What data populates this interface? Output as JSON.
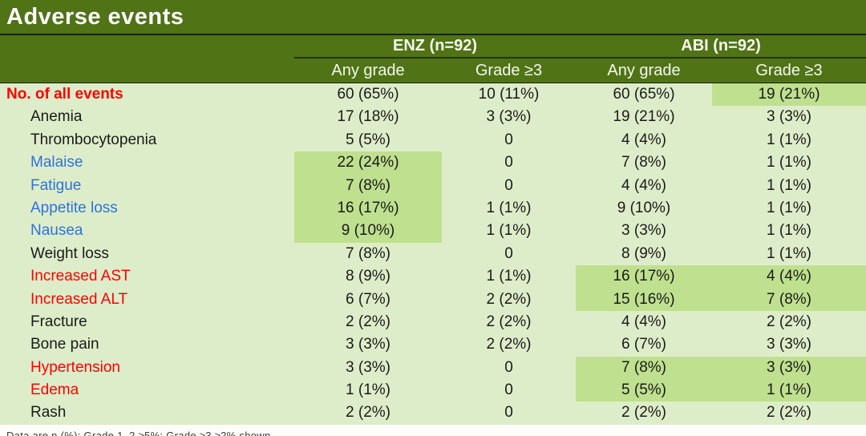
{
  "title": "Adverse events",
  "table": {
    "groups": [
      {
        "label": "ENZ (n=92)"
      },
      {
        "label": "ABI (n=92)"
      }
    ],
    "subcolumns": [
      "Any grade",
      "Grade ≥3",
      "Any grade",
      "Grade ≥3"
    ],
    "rows": [
      {
        "label": "No. of all events",
        "style": "red",
        "bold": true,
        "indent": false,
        "values": [
          "60 (65%)",
          "10 (11%)",
          "60 (65%)",
          "19 (21%)"
        ],
        "highlights": [
          false,
          false,
          false,
          true
        ]
      },
      {
        "label": "Anemia",
        "style": "black",
        "bold": false,
        "indent": true,
        "values": [
          "17 (18%)",
          "3 (3%)",
          "19 (21%)",
          "3 (3%)"
        ],
        "highlights": [
          false,
          false,
          false,
          false
        ]
      },
      {
        "label": "Thrombocytopenia",
        "style": "black",
        "bold": false,
        "indent": true,
        "values": [
          "5 (5%)",
          "0",
          "4 (4%)",
          "1 (1%)"
        ],
        "highlights": [
          false,
          false,
          false,
          false
        ]
      },
      {
        "label": "Malaise",
        "style": "blue",
        "bold": false,
        "indent": true,
        "values": [
          "22 (24%)",
          "0",
          "7 (8%)",
          "1 (1%)"
        ],
        "highlights": [
          true,
          false,
          false,
          false
        ]
      },
      {
        "label": "Fatigue",
        "style": "blue",
        "bold": false,
        "indent": true,
        "values": [
          "7 (8%)",
          "0",
          "4 (4%)",
          "1 (1%)"
        ],
        "highlights": [
          true,
          false,
          false,
          false
        ]
      },
      {
        "label": "Appetite loss",
        "style": "blue",
        "bold": false,
        "indent": true,
        "values": [
          "16 (17%)",
          "1 (1%)",
          "9 (10%)",
          "1 (1%)"
        ],
        "highlights": [
          true,
          false,
          false,
          false
        ]
      },
      {
        "label": "Nausea",
        "style": "blue",
        "bold": false,
        "indent": true,
        "values": [
          "9 (10%)",
          "1 (1%)",
          "3 (3%)",
          "1 (1%)"
        ],
        "highlights": [
          true,
          false,
          false,
          false
        ]
      },
      {
        "label": "Weight loss",
        "style": "black",
        "bold": false,
        "indent": true,
        "values": [
          "7 (8%)",
          "0",
          "8 (9%)",
          "1 (1%)"
        ],
        "highlights": [
          false,
          false,
          false,
          false
        ]
      },
      {
        "label": "Increased AST",
        "style": "red",
        "bold": false,
        "indent": true,
        "values": [
          "8 (9%)",
          "1 (1%)",
          "16 (17%)",
          "4 (4%)"
        ],
        "highlights": [
          false,
          false,
          true,
          true
        ]
      },
      {
        "label": "Increased ALT",
        "style": "red",
        "bold": false,
        "indent": true,
        "values": [
          "6 (7%)",
          "2 (2%)",
          "15 (16%)",
          "7 (8%)"
        ],
        "highlights": [
          false,
          false,
          true,
          true
        ]
      },
      {
        "label": "Fracture",
        "style": "black",
        "bold": false,
        "indent": true,
        "values": [
          "2 (2%)",
          "2 (2%)",
          "4 (4%)",
          "2 (2%)"
        ],
        "highlights": [
          false,
          false,
          false,
          false
        ]
      },
      {
        "label": "Bone pain",
        "style": "black",
        "bold": false,
        "indent": true,
        "values": [
          "3 (3%)",
          "2 (2%)",
          "6 (7%)",
          "3 (3%)"
        ],
        "highlights": [
          false,
          false,
          false,
          false
        ]
      },
      {
        "label": "Hypertension",
        "style": "red",
        "bold": false,
        "indent": true,
        "values": [
          "3 (3%)",
          "0",
          "7 (8%)",
          "3 (3%)"
        ],
        "highlights": [
          false,
          false,
          true,
          true
        ]
      },
      {
        "label": "Edema",
        "style": "red",
        "bold": false,
        "indent": true,
        "values": [
          "1 (1%)",
          "0",
          "5 (5%)",
          "1 (1%)"
        ],
        "highlights": [
          false,
          false,
          true,
          true
        ]
      },
      {
        "label": "Rash",
        "style": "black",
        "bold": false,
        "indent": true,
        "values": [
          "2 (2%)",
          "0",
          "2 (2%)",
          "2 (2%)"
        ],
        "highlights": [
          false,
          false,
          false,
          false
        ]
      }
    ]
  },
  "footnote_partial": "Data are n (%); Grade 1–2 ≥5%; Grade ≥3 ≥2% shown",
  "colors": {
    "header_bg": "#507316",
    "body_bg": "#DEEDC9",
    "highlight_bg": "#BFE08E",
    "red_text": "#ff0000",
    "blue_text": "#2b73dd",
    "black_text": "#1a1a1a",
    "header_text": "#f4f8ee"
  }
}
